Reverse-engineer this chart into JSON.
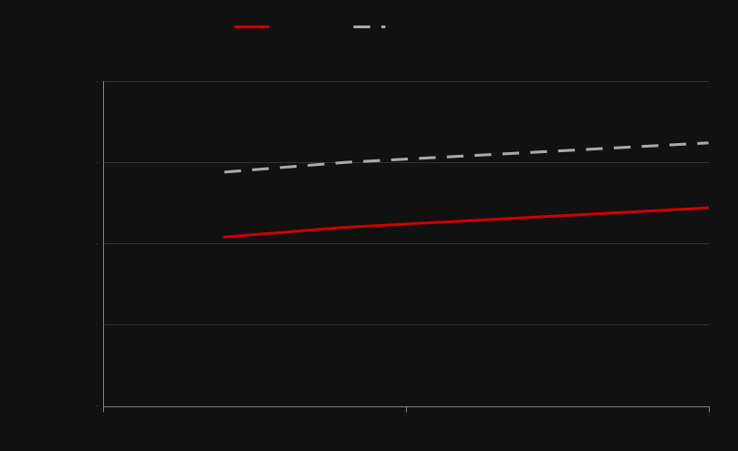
{
  "background_color": "#111111",
  "plot_bg_color": "#111111",
  "axis_color": "#888888",
  "grid_color": "#333333",
  "red_line_color": "#cc0000",
  "gray_line_color": "#aaaaaa",
  "red_x": [
    2,
    3,
    4,
    5,
    6,
    7,
    8,
    9,
    10
  ],
  "red_y": [
    5.2,
    5.35,
    5.5,
    5.6,
    5.7,
    5.8,
    5.9,
    6.0,
    6.1
  ],
  "gray_x": [
    2,
    3,
    4,
    5,
    6,
    7,
    8,
    9,
    10
  ],
  "gray_y": [
    7.2,
    7.35,
    7.5,
    7.6,
    7.7,
    7.8,
    7.9,
    8.0,
    8.1
  ],
  "ylim": [
    0,
    10
  ],
  "xlim": [
    0,
    10
  ],
  "yticks": [
    0,
    2.5,
    5,
    7.5,
    10
  ],
  "xticks": [
    0,
    5,
    10
  ],
  "legend_red_label": "",
  "legend_gray_label": ""
}
